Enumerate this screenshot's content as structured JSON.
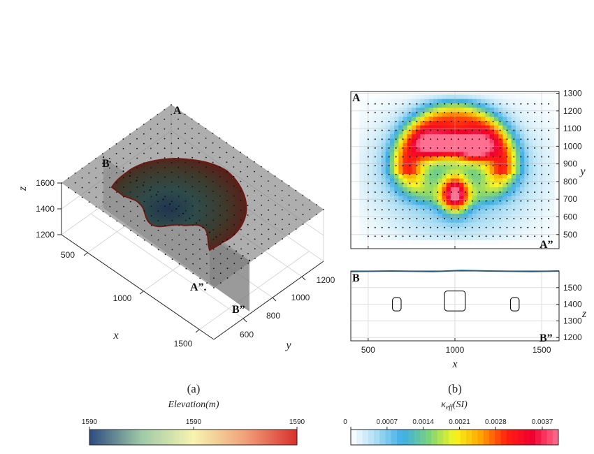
{
  "chart_data": [
    {
      "type": "surface3d",
      "panel_label": "(a)",
      "xlabel": "x",
      "ylabel": "y",
      "zlabel": "z",
      "x_ticks": [
        "500",
        "1000",
        "1500"
      ],
      "y_ticks": [
        "600",
        "800",
        "1000",
        "1200"
      ],
      "z_ticks": [
        "1200",
        "1400",
        "1600"
      ],
      "section_labels": [
        "A",
        "B",
        "A”.",
        "B”"
      ],
      "colorbar": {
        "title": "Elevation(m)",
        "ticks": [
          "1590",
          "1590",
          "1590"
        ],
        "colors": [
          "#2c4a7e",
          "#9ec9a8",
          "#f7f4b0",
          "#f0a17a",
          "#d8302b"
        ]
      }
    },
    {
      "type": "heatmap",
      "panel_label": "(b)",
      "xlabel": "x",
      "ylabel": "y",
      "xlim": [
        400,
        1600
      ],
      "ylim": [
        420,
        1310
      ],
      "x_ticks": [
        "500",
        "1000",
        "1500"
      ],
      "y_ticks": [
        "500",
        "600",
        "700",
        "800",
        "900",
        "1000",
        "1100",
        "1200",
        "1300"
      ],
      "corner_labels": [
        "A",
        "A”"
      ],
      "peaks": [
        {
          "x": 1000,
          "y": 730,
          "value": 0.0037
        },
        {
          "x": 860,
          "y": 1000,
          "value": 0.003
        },
        {
          "x": 960,
          "y": 1020,
          "value": 0.003
        },
        {
          "x": 1060,
          "y": 1010,
          "value": 0.003
        },
        {
          "x": 1140,
          "y": 990,
          "value": 0.003
        }
      ],
      "grid": true
    },
    {
      "type": "section",
      "xlabel": "x",
      "zlabel": "z",
      "xlim": [
        400,
        1600
      ],
      "zlim": [
        1180,
        1600
      ],
      "x_ticks": [
        "500",
        "1000",
        "1500"
      ],
      "z_ticks": [
        "1200",
        "1300",
        "1400",
        "1500"
      ],
      "corner_labels": [
        "B",
        "B”"
      ],
      "bodies": [
        {
          "x0": 640,
          "x1": 690,
          "z0": 1360,
          "z1": 1440
        },
        {
          "x0": 940,
          "x1": 1060,
          "z0": 1360,
          "z1": 1480
        },
        {
          "x0": 1320,
          "x1": 1370,
          "z0": 1360,
          "z1": 1440
        }
      ],
      "colorbar": {
        "title": "κ",
        "title_sub": "eff",
        "title_suffix": "(SI)",
        "ticks": [
          "0",
          "0.0007",
          "0.0014",
          "0.0021",
          "0.0028",
          "0.0037"
        ],
        "colors": [
          "#ffffff",
          "#a7dcf3",
          "#3daee6",
          "#7ad37a",
          "#f7f71f",
          "#ffa500",
          "#ff2010",
          "#f00030",
          "#ff7090"
        ]
      }
    }
  ]
}
